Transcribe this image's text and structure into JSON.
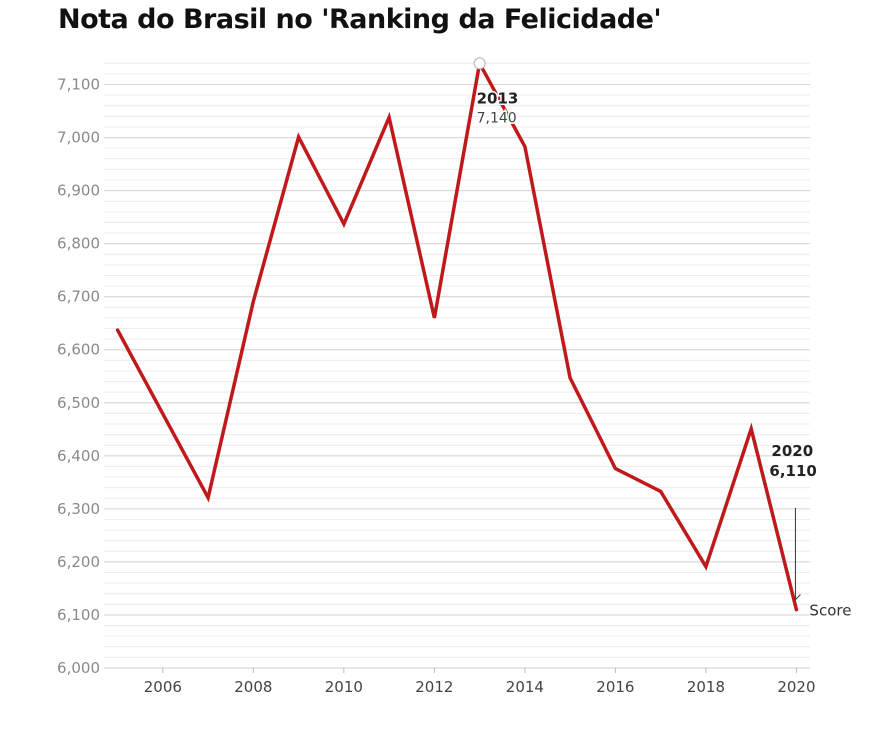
{
  "chart_data": {
    "type": "line",
    "title": "Nota do Brasil no 'Ranking da Felicidade'",
    "xlabel": "",
    "ylabel": "",
    "x": [
      2005,
      2007,
      2008,
      2009,
      2010,
      2011,
      2012,
      2013,
      2014,
      2015,
      2016,
      2017,
      2018,
      2019,
      2020
    ],
    "series": [
      {
        "name": "Score",
        "color": "#c0191b",
        "values": [
          6.637,
          6.321,
          6.691,
          7.001,
          6.837,
          7.038,
          6.66,
          7.14,
          6.983,
          6.547,
          6.376,
          6.333,
          6.191,
          6.451,
          6.11
        ]
      }
    ],
    "xticks": [
      2006,
      2008,
      2010,
      2012,
      2014,
      2016,
      2018,
      2020
    ],
    "yticks": [
      6.0,
      6.1,
      6.2,
      6.3,
      6.4,
      6.5,
      6.6,
      6.7,
      6.8,
      6.9,
      7.0,
      7.1
    ],
    "ytick_labels": [
      "6,000",
      "6,100",
      "6,200",
      "6,300",
      "6,400",
      "6,500",
      "6,600",
      "6,700",
      "6,800",
      "6,900",
      "7,000",
      "7,100"
    ],
    "xlim": [
      2004.7,
      2020.3
    ],
    "ylim": [
      6.0,
      7.15
    ],
    "grid": true,
    "annotations": [
      {
        "year": "2013",
        "value": "7,140",
        "x": 2013,
        "y": 7.14,
        "style": "hover"
      },
      {
        "year": "2020",
        "value": "6,110",
        "x": 2020,
        "y": 6.11,
        "style": "end"
      }
    ]
  }
}
